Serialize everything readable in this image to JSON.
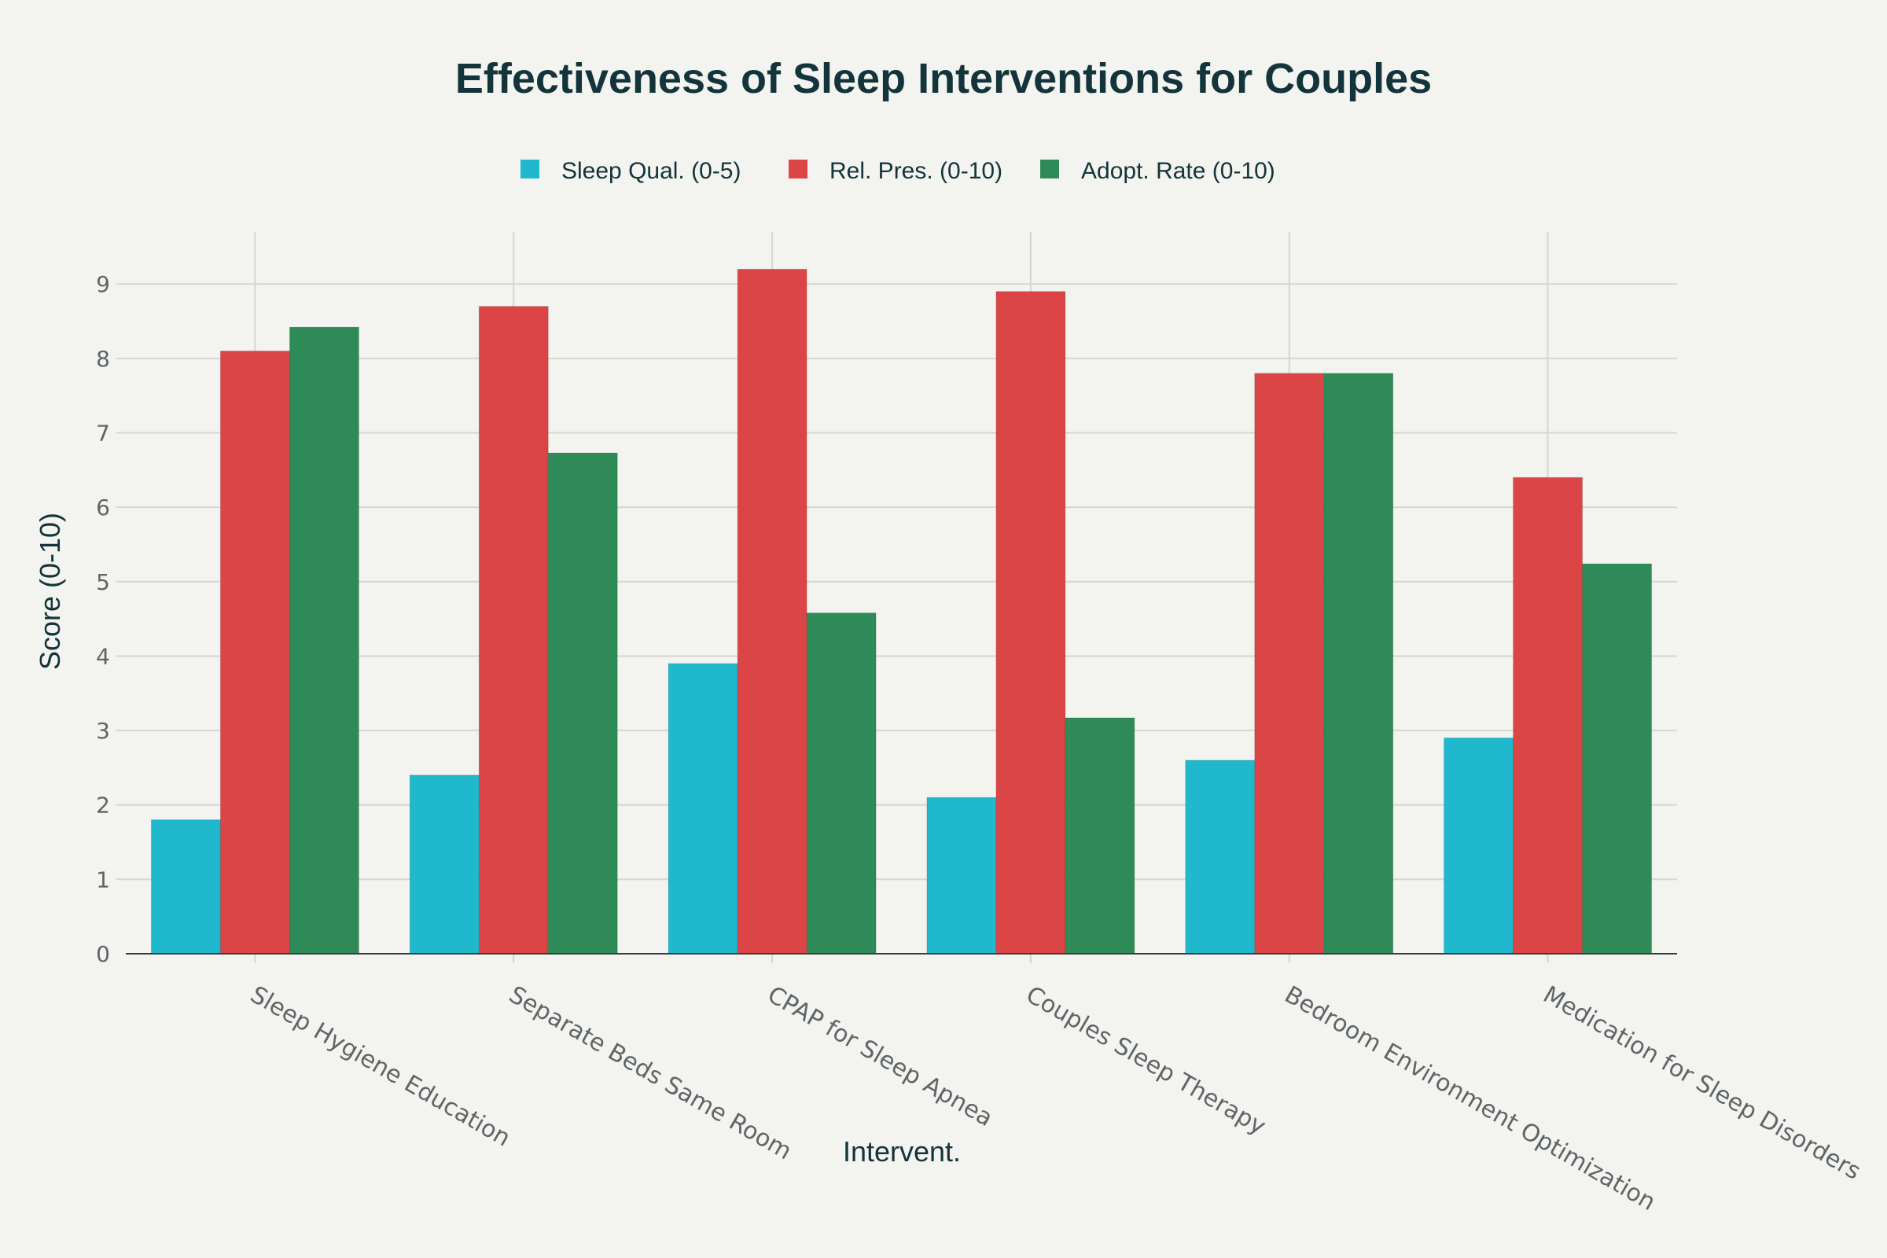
{
  "chart_data": {
    "type": "bar",
    "title": "Effectiveness of Sleep Interventions for Couples",
    "xlabel": "Intervent.",
    "ylabel": "Score (0-10)",
    "ylim": [
      0,
      9.7
    ],
    "yticks": [
      0,
      1,
      2,
      3,
      4,
      5,
      6,
      7,
      8,
      9
    ],
    "grid": true,
    "legend_position": "top-center",
    "categories": [
      "Sleep Hygiene Education",
      "Separate Beds Same Room",
      "CPAP for Sleep Apnea",
      "Couples Sleep Therapy",
      "Bedroom Environment Optimization",
      "Medication for Sleep Disorders"
    ],
    "series": [
      {
        "name": "Sleep Qual. (0-5)",
        "color": "#1fb8cd",
        "values": [
          1.8,
          2.4,
          3.9,
          2.1,
          2.6,
          2.9
        ]
      },
      {
        "name": "Rel. Pres. (0-10)",
        "color": "#db4545",
        "values": [
          8.1,
          8.7,
          9.2,
          8.9,
          7.8,
          6.4
        ]
      },
      {
        "name": "Adopt. Rate (0-10)",
        "color": "#2e8b57",
        "values": [
          8.42,
          6.73,
          4.58,
          3.17,
          7.8,
          5.24
        ]
      }
    ]
  }
}
